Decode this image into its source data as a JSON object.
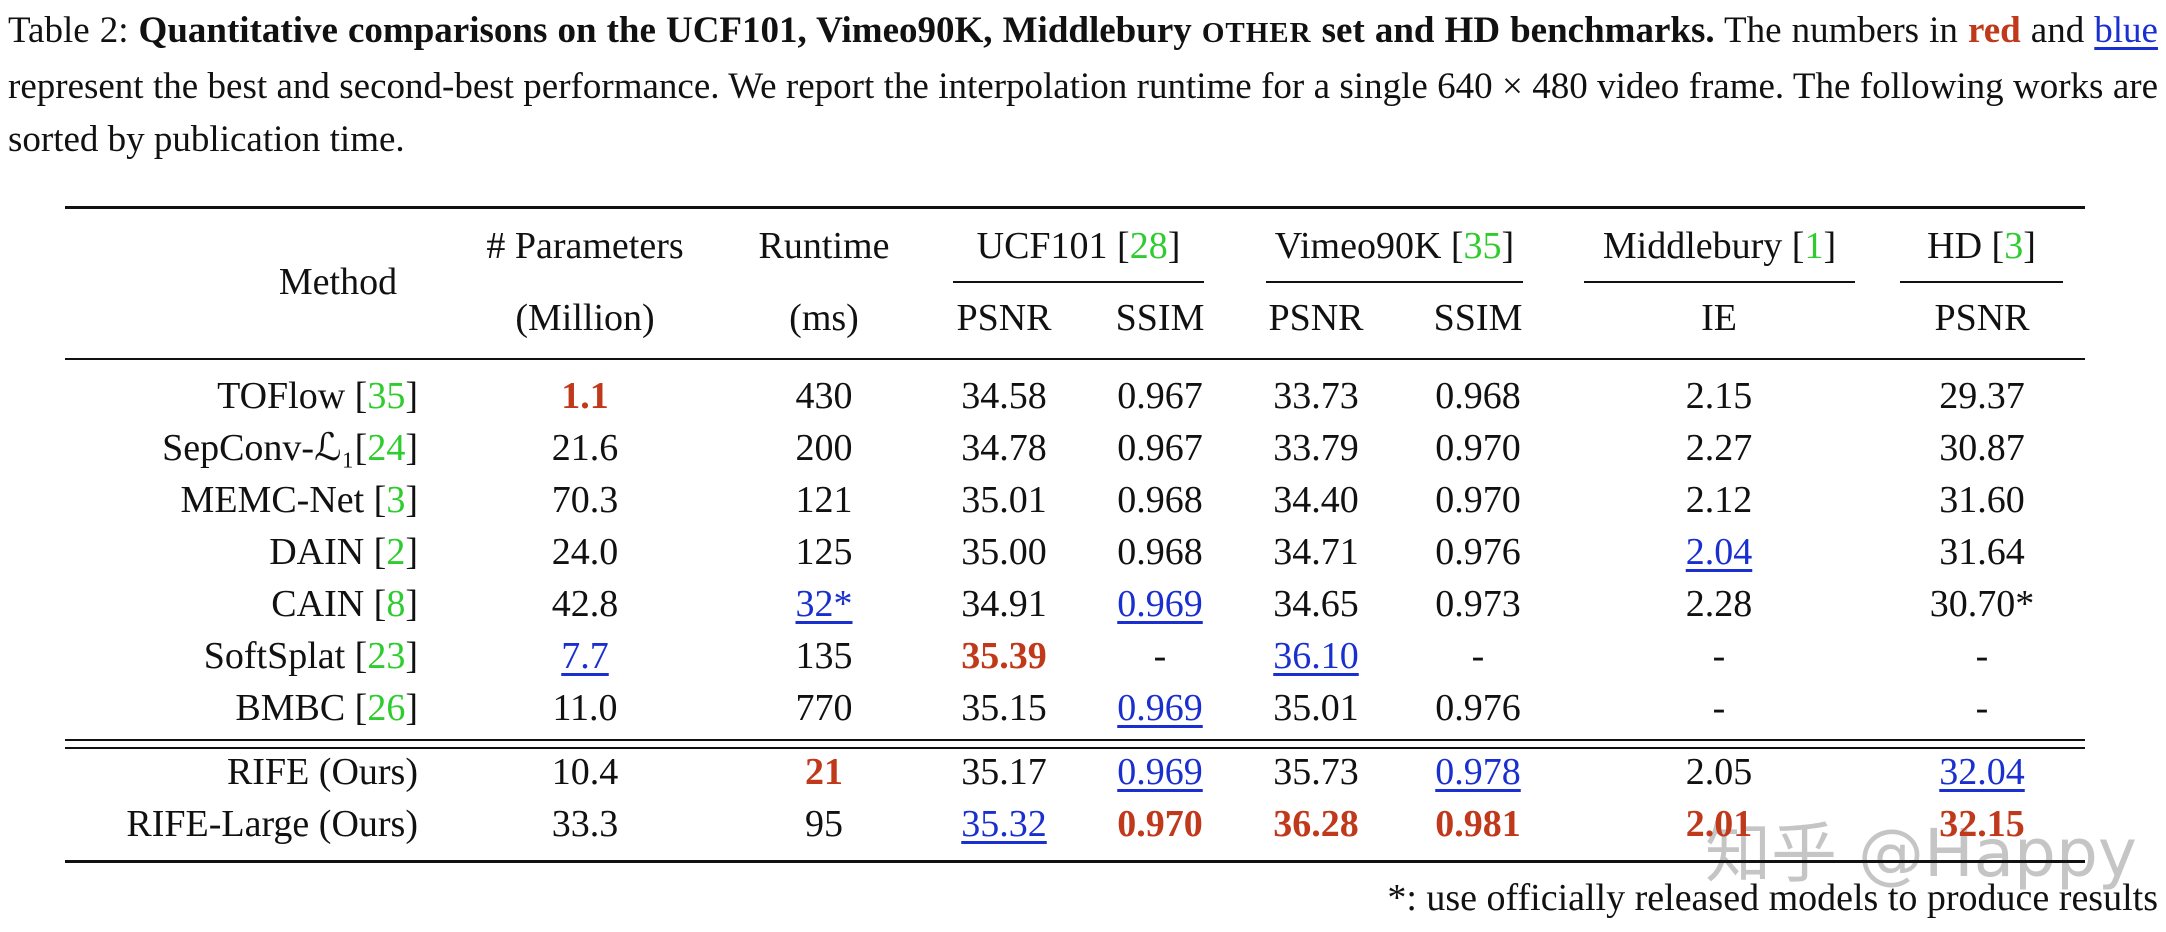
{
  "caption": [
    {
      "text": "Table 2: "
    },
    {
      "text": "Quantitative comparisons on the UCF101, Vimeo90K, Middlebury ",
      "style": "bold"
    },
    {
      "text": "OTHER",
      "style": "bold-smallcaps"
    },
    {
      "text": " set and HD benchmarks.",
      "style": "bold"
    },
    {
      "text": " The numbers in "
    },
    {
      "text": "red",
      "style": "best"
    },
    {
      "text": " and "
    },
    {
      "text": "blue",
      "style": "second"
    },
    {
      "text": " represent the best and second-best performance. We report the interpolation runtime for a single 640 × 480 video frame. The following works are sorted by publication time."
    }
  ],
  "table": {
    "header": {
      "method": "Method",
      "params": [
        "# Parameters",
        "(Million)"
      ],
      "runtime": [
        "Runtime",
        "(ms)"
      ],
      "groups": [
        {
          "name": "UCF101 [28]",
          "metrics": [
            "PSNR",
            "SSIM"
          ]
        },
        {
          "name": "Vimeo90K [35]",
          "metrics": [
            "PSNR",
            "SSIM"
          ]
        },
        {
          "name": "Middlebury [1]",
          "metrics": [
            "IE"
          ]
        },
        {
          "name": "HD  [3]",
          "metrics": [
            "PSNR"
          ]
        }
      ]
    },
    "rows": [
      [
        "TOFlow [35]",
        {
          "text": "1.1",
          "rank": "best"
        },
        "430",
        "34.58",
        "0.967",
        "33.73",
        "0.968",
        "2.15",
        "29.37"
      ],
      [
        "SepConv-ℒ₁[24]",
        "21.6",
        "200",
        "34.78",
        "0.967",
        "33.79",
        "0.970",
        "2.27",
        "30.87"
      ],
      [
        "MEMC-Net [3]",
        "70.3",
        "121",
        "35.01",
        "0.968",
        "34.40",
        "0.970",
        "2.12",
        "31.60"
      ],
      [
        "DAIN [2]",
        "24.0",
        "125",
        "35.00",
        "0.968",
        "34.71",
        "0.976",
        {
          "text": "2.04",
          "rank": "second"
        },
        "31.64"
      ],
      [
        "CAIN [8]",
        "42.8",
        {
          "text": "32*",
          "rank": "second"
        },
        "34.91",
        {
          "text": "0.969",
          "rank": "second"
        },
        "34.65",
        "0.973",
        "2.28",
        "30.70*"
      ],
      [
        "SoftSplat [23]",
        {
          "text": "7.7",
          "rank": "second"
        },
        "135",
        {
          "text": "35.39",
          "rank": "best"
        },
        "-",
        {
          "text": "36.10",
          "rank": "second"
        },
        "-",
        "-",
        "-"
      ],
      [
        "BMBC [26]",
        "11.0",
        "770",
        "35.15",
        {
          "text": "0.969",
          "rank": "second"
        },
        "35.01",
        "0.976",
        "-",
        "-"
      ],
      [
        "RIFE (Ours)",
        "10.4",
        {
          "text": "21",
          "rank": "best"
        },
        "35.17",
        {
          "text": "0.969",
          "rank": "second"
        },
        "35.73",
        {
          "text": "0.978",
          "rank": "second"
        },
        "2.05",
        {
          "text": "32.04",
          "rank": "second"
        }
      ],
      [
        "RIFE-Large (Ours)",
        "33.3",
        "95",
        {
          "text": "35.32",
          "rank": "second"
        },
        {
          "text": "0.970",
          "rank": "best"
        },
        {
          "text": "36.28",
          "rank": "best"
        },
        {
          "text": "0.981",
          "rank": "best"
        },
        {
          "text": "2.01",
          "rank": "best"
        },
        {
          "text": "32.15",
          "rank": "best"
        }
      ]
    ]
  },
  "footnote": "*: use officially released models to produce results",
  "watermark": "知乎 @Happy"
}
